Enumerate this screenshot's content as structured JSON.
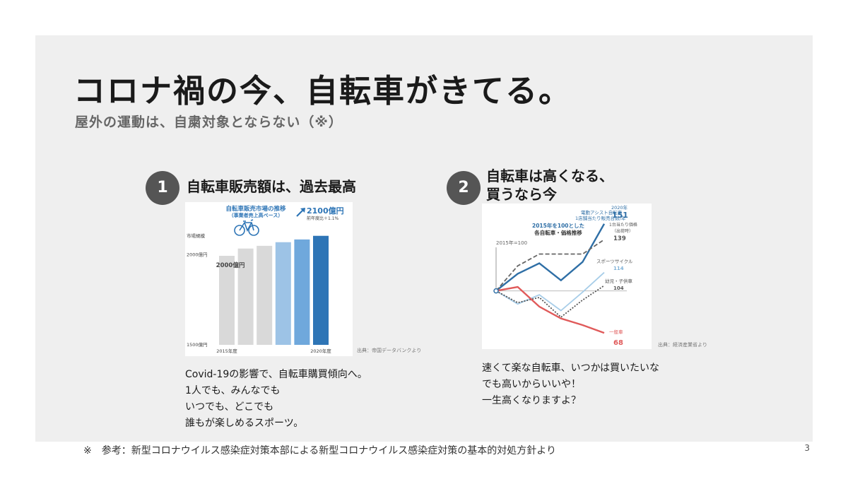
{
  "slide": {
    "title": "コロナ禍の今、自転車がきてる。",
    "subtitle": "屋外の運動は、自粛対象とならない（※）",
    "footnote": "※　参考：新型コロナウイルス感染症対策本部による新型コロナウイルス感染症対策の基本的対処方針より",
    "page_number": "3"
  },
  "section1": {
    "number": "1",
    "heading": "自転車販売額は、過去最高",
    "source": "出典：帝国データバンクより",
    "body": [
      "Covid-19の影響で、自転車購買傾向へ。",
      "1人でも、みんなでも",
      "いつでも、どこでも",
      "誰もが楽しめるスポーツ。"
    ]
  },
  "section2": {
    "number": "2",
    "heading_lines": [
      "自転車は高くなる、",
      "買うなら今"
    ],
    "source": "出典：経済産業省より",
    "body": [
      "速くて楽な自転車、いつかは買いたいな",
      "でも高いからいいや！",
      "一生高くなりますよ？"
    ]
  },
  "chart_data": [
    {
      "type": "bar",
      "title": "自転車販売市場の推移",
      "subtitle": "（事業者売上高ベース）",
      "ylabel": "市場規模",
      "y_ticks": [
        "2000億円",
        "1500億円"
      ],
      "categories": [
        "2015年度",
        "2016年度",
        "2017年度",
        "2018年度",
        "2019年度",
        "2020年度"
      ],
      "x_tick_labels": [
        "2015年度",
        "",
        "",
        "",
        "",
        "2020年度"
      ],
      "values": [
        1990,
        2030,
        2045,
        2065,
        2080,
        2100
      ],
      "ylim": [
        1500,
        2200
      ],
      "bar_colors": [
        "#d9d9d9",
        "#d9d9d9",
        "#d9d9d9",
        "#9dc3e6",
        "#6fa8dc",
        "#2e75b6"
      ],
      "annotations": {
        "first_value": "2000億円",
        "last_value": "2100億円",
        "last_note": "前年度比＋1.1%"
      }
    },
    {
      "type": "line",
      "title": "2015年を100とした 各自転車・価格推移",
      "x": [
        2015,
        2016,
        2017,
        2018,
        2019,
        2020
      ],
      "ylim": [
        60,
        160
      ],
      "baseline": 100,
      "baseline_label": "2015年=100",
      "series": [
        {
          "name": "電動アシスト自転車 1店舗当たり販売台数/年",
          "end_label": "2020年 151",
          "values": [
            100,
            113,
            121,
            108,
            122,
            151
          ],
          "color": "#2f6fa6",
          "style": "solid"
        },
        {
          "name": "1台当たり価格 （出荷時）",
          "end_label": "139",
          "values": [
            100,
            119,
            128,
            128,
            128,
            139
          ],
          "color": "#666666",
          "style": "dashed"
        },
        {
          "name": "スポーツサイクル",
          "end_label": "114",
          "values": [
            100,
            90,
            97,
            85,
            99,
            114
          ],
          "color": "#a7cde8",
          "style": "solid"
        },
        {
          "name": "幼児・子供車",
          "end_label": "104",
          "values": [
            100,
            91,
            95,
            80,
            93,
            104
          ],
          "color": "#555555",
          "style": "dotted"
        },
        {
          "name": "一般車",
          "end_label": "68",
          "values": [
            100,
            103,
            88,
            79,
            74,
            68
          ],
          "color": "#e05a5a",
          "style": "solid"
        }
      ]
    }
  ]
}
